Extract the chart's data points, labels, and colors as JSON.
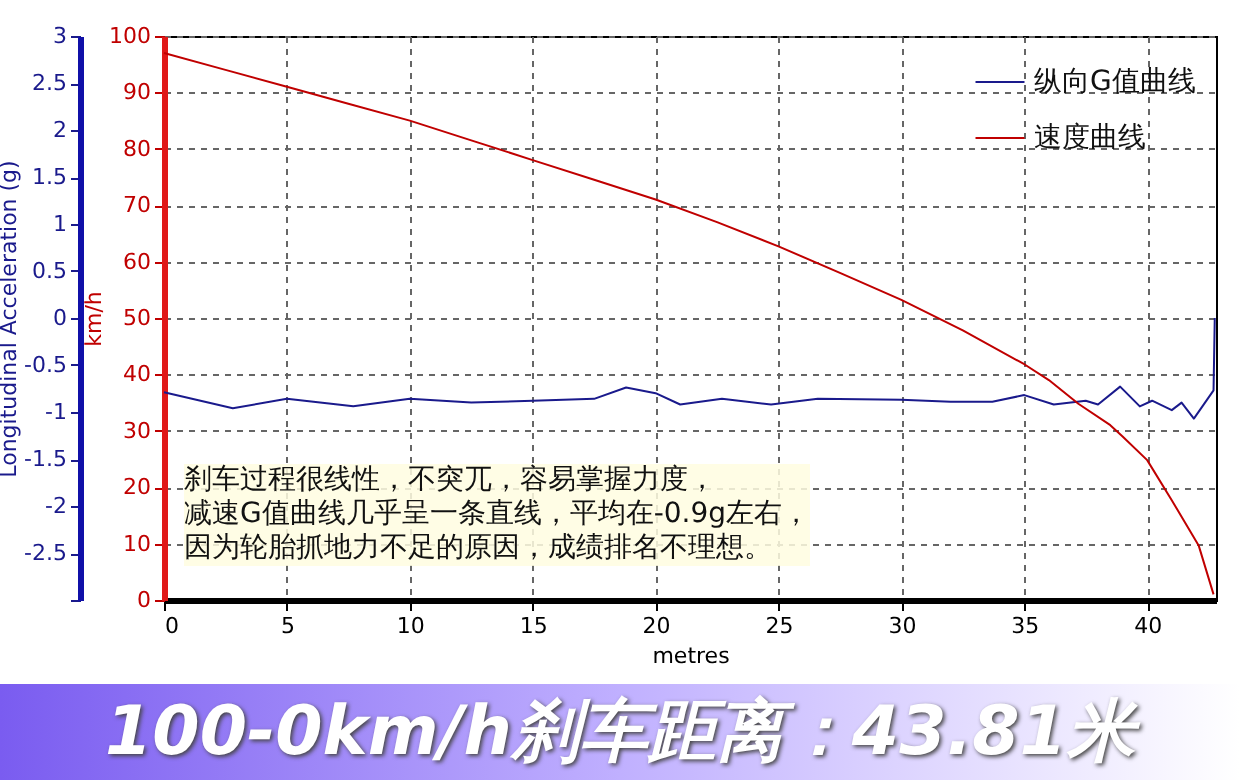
{
  "chart_data": {
    "type": "line",
    "title": "100-0km/h刹车距离：43.81米",
    "xlabel": "metres",
    "ylabel": "km/h",
    "y2label": "Longitudinal Acceleration (g)",
    "annotations": [
      "刹车过程很线性，不突兀，容易掌握力度，",
      "减速G值曲线几乎呈一条直线，平均在-0.9g左右，",
      "因为轮胎抓地力不足的原因，成绩排名不理想。"
    ],
    "xlim": [
      0,
      42.8
    ],
    "xticks": [
      0,
      5,
      10,
      15,
      20,
      25,
      30,
      35,
      40
    ],
    "ylim": [
      0,
      100
    ],
    "yticks": [
      0,
      10,
      20,
      30,
      40,
      50,
      60,
      70,
      80,
      90,
      100
    ],
    "y2lim": [
      -3,
      3
    ],
    "y2ticks": [
      {
        "value": -3,
        "label": null
      },
      -2.5,
      -2,
      -1.5,
      -1,
      -0.5,
      0,
      0.5,
      1,
      1.5,
      2,
      2.5,
      3
    ],
    "grid": true,
    "legend": "top right",
    "line_style": "solid",
    "series": [
      {
        "name": "纵向G值曲线",
        "color": "#1a1a8c",
        "axis": "y2",
        "x": [
          0,
          2.8,
          5,
          7.7,
          10,
          12.5,
          15,
          17.5,
          18.8,
          20,
          21,
          22.7,
          24.7,
          26.6,
          30,
          32,
          33.7,
          35,
          36.2,
          37.5,
          38,
          38.9,
          39.7,
          40.2,
          41,
          41.4,
          41.9,
          42.7,
          42.75
        ],
        "values": [
          -0.79,
          -0.96,
          -0.86,
          -0.94,
          -0.86,
          -0.9,
          -0.88,
          -0.86,
          -0.74,
          -0.8,
          -0.92,
          -0.86,
          -0.92,
          -0.86,
          -0.87,
          -0.89,
          -0.89,
          -0.82,
          -0.92,
          -0.88,
          -0.92,
          -0.73,
          -0.94,
          -0.88,
          -0.98,
          -0.9,
          -1.07,
          -0.77,
          0
        ]
      },
      {
        "name": "速度曲线",
        "color": "#c00000",
        "x": [
          0,
          2.5,
          5,
          7.5,
          10,
          12.5,
          15,
          17.5,
          20,
          22.5,
          25,
          27.5,
          30,
          32.5,
          35,
          36,
          37.2,
          38.5,
          39,
          40,
          41,
          42.1,
          42.7
        ],
        "values": [
          97,
          94,
          91,
          88,
          85,
          81.5,
          78,
          74.5,
          71,
          67,
          62.7,
          58,
          53.2,
          47.8,
          41.8,
          39,
          34.8,
          31,
          29,
          24.8,
          17.7,
          9.6,
          1
        ]
      }
    ]
  }
}
